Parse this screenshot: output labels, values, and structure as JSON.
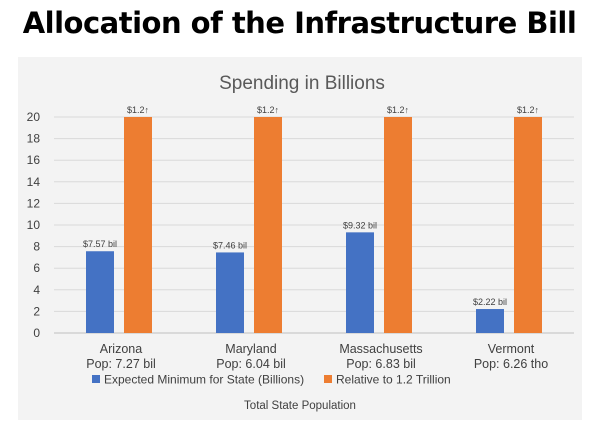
{
  "headline": "Allocation of the Infrastructure Bill",
  "chart_data": {
    "type": "bar",
    "title": "Spending in Billions",
    "xlabel": "Total State Population",
    "ylabel": "",
    "ylim": [
      0,
      20
    ],
    "yticks": [
      0,
      2,
      4,
      6,
      8,
      10,
      12,
      14,
      16,
      18,
      20
    ],
    "grid": true,
    "legend_position": "bottom",
    "categories": [
      {
        "name": "Arizona",
        "sub": "Pop: 7.27 bil"
      },
      {
        "name": "Maryland",
        "sub": "Pop: 6.04 bil"
      },
      {
        "name": "Massachusetts",
        "sub": "Pop: 6.83 bil"
      },
      {
        "name": "Vermont",
        "sub": "Pop: 6.26 tho"
      }
    ],
    "series": [
      {
        "name": "Expected Minimum for State (Billions)",
        "color": "#4472c4",
        "values": [
          7.57,
          7.46,
          9.32,
          2.22
        ],
        "labels": [
          "$7.57 bil",
          "$7.46 bil",
          "$9.32 bil",
          "$2.22 bil"
        ]
      },
      {
        "name": "Relative to 1.2 Trillion",
        "color": "#ed7d31",
        "values": [
          20,
          20,
          20,
          20
        ],
        "labels": [
          "$1.2↑",
          "$1.2↑",
          "$1.2↑",
          "$1.2↑"
        ]
      }
    ]
  }
}
